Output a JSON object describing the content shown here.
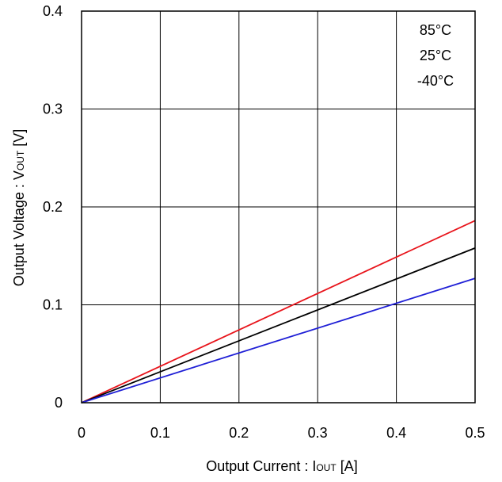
{
  "chart_data": {
    "type": "line",
    "xlabel_main": "Output Current : I",
    "xlabel_sub": "OUT",
    "xlabel_unit": " [A]",
    "ylabel_main": "Output Voltage : V",
    "ylabel_sub": "OUT",
    "ylabel_unit": " [V]",
    "xlim": [
      0,
      0.5
    ],
    "ylim": [
      0,
      0.4
    ],
    "x_ticks": [
      "0",
      "0.1",
      "0.2",
      "0.3",
      "0.4",
      "0.5"
    ],
    "x_tick_values": [
      0,
      0.1,
      0.2,
      0.3,
      0.4,
      0.5
    ],
    "y_ticks": [
      "0",
      "0.1",
      "0.2",
      "0.3",
      "0.4"
    ],
    "y_tick_values": [
      0,
      0.1,
      0.2,
      0.3,
      0.4
    ],
    "grid": true,
    "legend_position": "top-right",
    "legend": [
      "85°C",
      "25°C",
      "-40°C"
    ],
    "series": [
      {
        "name": "85°C",
        "color": "#e8141b",
        "x": [
          0,
          0.5
        ],
        "y": [
          0,
          0.186
        ]
      },
      {
        "name": "25°C",
        "color": "#000000",
        "x": [
          0,
          0.5
        ],
        "y": [
          0,
          0.158
        ]
      },
      {
        "name": "-40°C",
        "color": "#1f1fd6",
        "x": [
          0,
          0.5
        ],
        "y": [
          0,
          0.127
        ]
      }
    ]
  }
}
